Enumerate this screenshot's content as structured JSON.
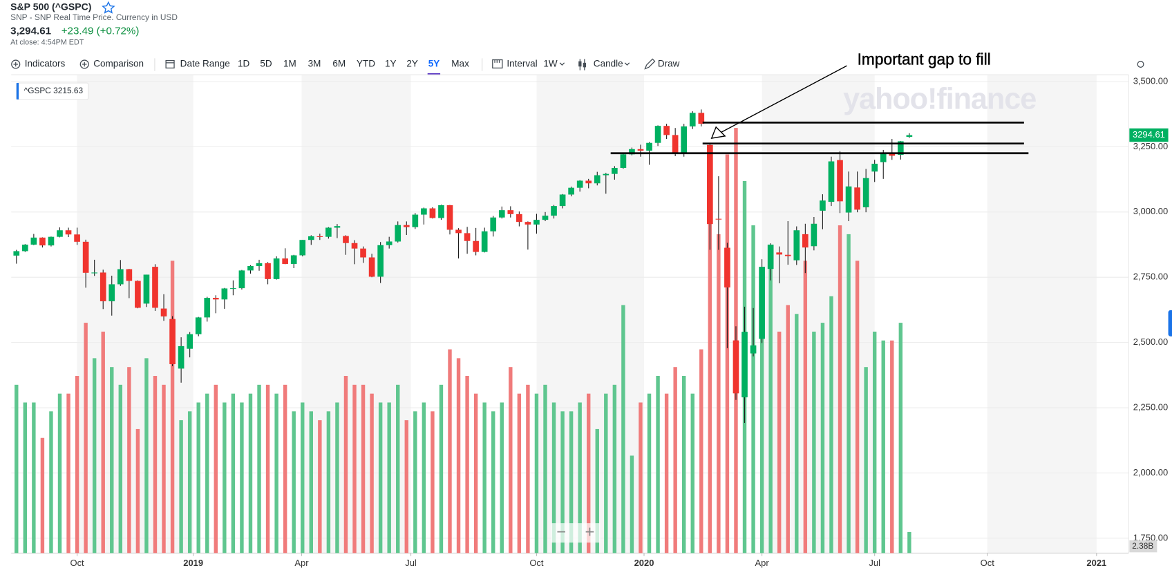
{
  "header": {
    "title": "S&P 500 (^GSPC)",
    "subtitle": "SNP - SNP Real Time Price. Currency in USD",
    "price": "3,294.61",
    "change": "+23.49 (+0.72%)",
    "close_time": "At close: 4:54PM EDT"
  },
  "toolbar": {
    "indicators": "Indicators",
    "comparison": "Comparison",
    "date_range": "Date Range",
    "ranges": [
      "1D",
      "5D",
      "1M",
      "3M",
      "6M",
      "YTD",
      "1Y",
      "2Y",
      "5Y",
      "Max"
    ],
    "selected_range": 8,
    "interval": "Interval",
    "interval_value": "1W",
    "chart_kind": "Candle",
    "draw": "Draw",
    "zoom_out": "−",
    "zoom_in": "+"
  },
  "chart_data": {
    "type": "candlestick",
    "hover_label": "^GSPC 3215.63",
    "annotation": "Important gap to fill",
    "watermark": "yahoo!finance",
    "last_tag": "3294.61",
    "volume_tag": "2.38B",
    "up_color": "#00b061",
    "down_color": "#f0342e",
    "volume_up_color": "#5fc68f",
    "volume_down_color": "#f07b7b",
    "grid": true,
    "xlim": [
      -0.6,
      128.3
    ],
    "xticks": [
      {
        "value": 7.0,
        "label": "Oct"
      },
      {
        "value": 20.4,
        "label": "2019"
      },
      {
        "value": 32.9,
        "label": "Apr"
      },
      {
        "value": 45.5,
        "label": "Jul"
      },
      {
        "value": 60.0,
        "label": "Oct"
      },
      {
        "value": 72.4,
        "label": "2020"
      },
      {
        "value": 86.0,
        "label": "Apr"
      },
      {
        "value": 99.0,
        "label": "Jul"
      },
      {
        "value": 112.0,
        "label": "Oct"
      },
      {
        "value": 124.6,
        "label": "2021"
      }
    ],
    "ylim": [
      1693,
      3526
    ],
    "yticks": [
      {
        "value": 1750,
        "label": "1,750.00"
      },
      {
        "value": 2000,
        "label": "2,000.00"
      },
      {
        "value": 2250,
        "label": "2,250.00"
      },
      {
        "value": 2500,
        "label": "2,500.00"
      },
      {
        "value": 2750,
        "label": "2,750.00"
      },
      {
        "value": 3000,
        "label": "3,000.00"
      },
      {
        "value": 3250,
        "label": "3,250.00"
      },
      {
        "value": 3500,
        "label": "3,500.00"
      }
    ],
    "volume_ylim": [
      0,
      54
    ],
    "open": [
      2833,
      2850,
      2875,
      2902,
      2872,
      2905,
      2930,
      2914,
      2886,
      2767,
      2768,
      2658,
      2723,
      2781,
      2736,
      2649,
      2790,
      2630,
      2590,
      2400,
      2476,
      2532,
      2596,
      2671,
      2665,
      2707,
      2708,
      2776,
      2793,
      2804,
      2743,
      2822,
      2801,
      2834,
      2893,
      2907,
      2905,
      2940,
      2908,
      2881,
      2860,
      2826,
      2752,
      2873,
      2887,
      2950,
      2942,
      2990,
      3014,
      2977,
      3026,
      2932,
      2919,
      2889,
      2847,
      2926,
      2979,
      3007,
      2992,
      2962,
      2952,
      2970,
      2986,
      3023,
      3067,
      3093,
      3120,
      3110,
      3141,
      3146,
      3169,
      3221,
      3241,
      3235,
      3265,
      3330,
      3295,
      3226,
      3328,
      3380,
      3257,
      2974,
      2863,
      2508,
      2290,
      2458,
      2514,
      2782,
      2845,
      2836,
      2815,
      2915,
      2869,
      3005,
      3039,
      3199,
      2998,
      3094,
      3018,
      3155,
      3191,
      3224,
      3219,
      3288
    ],
    "high": [
      2855,
      2877,
      2916,
      2903,
      2906,
      2941,
      2940,
      2940,
      2894,
      2817,
      2779,
      2756,
      2816,
      2782,
      2738,
      2760,
      2800,
      2685,
      2601,
      2520,
      2540,
      2598,
      2675,
      2681,
      2709,
      2738,
      2778,
      2796,
      2817,
      2808,
      2830,
      2861,
      2836,
      2893,
      2911,
      2917,
      2942,
      2954,
      2911,
      2892,
      2868,
      2840,
      2885,
      2905,
      2964,
      2964,
      2996,
      3017,
      3018,
      3028,
      3027,
      2938,
      2943,
      2939,
      2940,
      2985,
      3021,
      3022,
      3002,
      2964,
      2993,
      3000,
      3027,
      3069,
      3097,
      3122,
      3127,
      3154,
      3150,
      3176,
      3226,
      3247,
      3258,
      3268,
      3332,
      3338,
      3322,
      3338,
      3386,
      3393,
      3259,
      3137,
      2882,
      2562,
      2637,
      2632,
      2819,
      2880,
      2868,
      2965,
      2945,
      2955,
      2981,
      3068,
      3212,
      3233,
      3155,
      3155,
      3165,
      3200,
      3238,
      3280,
      3272,
      3302
    ],
    "low": [
      2802,
      2847,
      2873,
      2864,
      2868,
      2903,
      2904,
      2874,
      2710,
      2755,
      2628,
      2603,
      2717,
      2670,
      2631,
      2636,
      2621,
      2583,
      2409,
      2346,
      2443,
      2524,
      2580,
      2612,
      2629,
      2681,
      2703,
      2764,
      2775,
      2723,
      2741,
      2800,
      2785,
      2830,
      2874,
      2893,
      2898,
      2900,
      2836,
      2800,
      2805,
      2750,
      2728,
      2860,
      2883,
      2912,
      2935,
      2952,
      2975,
      2970,
      2914,
      2822,
      2840,
      2834,
      2845,
      2906,
      2975,
      2979,
      2945,
      2856,
      2917,
      2965,
      2975,
      3014,
      3060,
      3078,
      3091,
      3102,
      3070,
      3124,
      3166,
      3217,
      3212,
      3181,
      3253,
      3280,
      3214,
      3212,
      3318,
      3328,
      2855,
      2855,
      2478,
      2280,
      2192,
      2447,
      2498,
      2738,
      2727,
      2798,
      2797,
      2766,
      2853,
      2934,
      3023,
      2996,
      2965,
      2999,
      2999,
      3115,
      3127,
      3200,
      3201,
      3284
    ],
    "close": [
      2850,
      2875,
      2902,
      2872,
      2905,
      2930,
      2914,
      2886,
      2767,
      2768,
      2658,
      2723,
      2781,
      2736,
      2633,
      2760,
      2633,
      2600,
      2417,
      2486,
      2532,
      2596,
      2671,
      2665,
      2707,
      2708,
      2776,
      2793,
      2804,
      2743,
      2822,
      2801,
      2834,
      2893,
      2907,
      2905,
      2940,
      2946,
      2881,
      2860,
      2826,
      2752,
      2873,
      2887,
      2950,
      2942,
      2990,
      3014,
      2977,
      3026,
      2932,
      2919,
      2889,
      2847,
      2926,
      2979,
      3007,
      2992,
      2962,
      2952,
      2970,
      2986,
      3023,
      3067,
      3093,
      3120,
      3110,
      3141,
      3146,
      3169,
      3221,
      3241,
      3235,
      3265,
      3330,
      3295,
      3226,
      3328,
      3380,
      3338,
      2954,
      2972,
      2711,
      2305,
      2541,
      2489,
      2790,
      2875,
      2837,
      2831,
      2930,
      2864,
      2955,
      3044,
      3194,
      3041,
      3098,
      3009,
      3130,
      3185,
      3225,
      3215.63,
      3271,
      3294.61
    ],
    "volume": [
      19,
      17,
      17,
      13,
      16,
      18,
      18,
      20,
      26,
      22,
      25,
      21,
      19,
      21,
      14,
      22,
      20,
      19,
      33,
      15,
      16,
      17,
      18,
      19,
      17,
      18,
      17,
      18,
      19,
      19,
      18,
      19,
      16,
      17,
      16,
      15,
      16,
      17,
      20,
      19,
      19,
      18,
      17,
      17,
      19,
      15,
      16,
      17,
      16,
      19,
      23,
      22,
      20,
      18,
      17,
      16,
      17,
      21,
      18,
      19,
      18,
      19,
      17,
      16,
      16,
      17,
      18,
      14,
      18,
      19,
      28,
      11,
      17,
      18,
      20,
      18,
      21,
      20,
      18,
      23,
      38,
      36,
      45,
      48,
      42,
      37,
      30,
      33,
      25,
      28,
      27,
      33,
      25,
      26,
      29,
      37,
      36,
      33,
      21,
      25,
      24,
      24,
      26,
      2.38
    ]
  }
}
